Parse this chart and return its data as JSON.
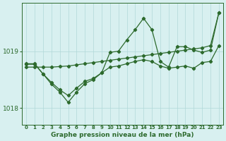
{
  "title": "Graphe pression niveau de la mer (hPa)",
  "background_color": "#d8f0f0",
  "grid_color": "#b0d8d8",
  "line_color": "#2d6a2d",
  "x_labels": [
    "0",
    "1",
    "2",
    "3",
    "4",
    "5",
    "6",
    "7",
    "8",
    "9",
    "10",
    "11",
    "12",
    "13",
    "14",
    "15",
    "16",
    "17",
    "18",
    "19",
    "20",
    "21",
    "22",
    "23"
  ],
  "ylim": [
    1017.7,
    1019.85
  ],
  "yticks": [
    1018,
    1019
  ],
  "line1_x": [
    0,
    1,
    2,
    3,
    4,
    5,
    6,
    7,
    8,
    9,
    10,
    11,
    12,
    13,
    14,
    15,
    16,
    17,
    18,
    19,
    20,
    21,
    22,
    23
  ],
  "line1_y": [
    1018.78,
    1018.78,
    1018.6,
    1018.42,
    1018.28,
    1018.1,
    1018.28,
    1018.43,
    1018.5,
    1018.62,
    1018.98,
    1019.0,
    1019.2,
    1019.38,
    1019.58,
    1019.38,
    1018.82,
    1018.72,
    1019.08,
    1019.08,
    1019.02,
    1018.98,
    1019.02,
    1019.68
  ],
  "line2_x": [
    0,
    1,
    2,
    3,
    4,
    5,
    6,
    7,
    8,
    9,
    10,
    11,
    12,
    13,
    14,
    15,
    16,
    17,
    18,
    19,
    20,
    21,
    22,
    23
  ],
  "line2_y": [
    1018.72,
    1018.72,
    1018.72,
    1018.72,
    1018.73,
    1018.74,
    1018.76,
    1018.78,
    1018.8,
    1018.82,
    1018.84,
    1018.86,
    1018.88,
    1018.9,
    1018.92,
    1018.94,
    1018.96,
    1018.98,
    1019.0,
    1019.02,
    1019.04,
    1019.06,
    1019.1,
    1019.68
  ],
  "line3_x": [
    0,
    1,
    2,
    3,
    4,
    5,
    6,
    7,
    8,
    9,
    10,
    11,
    12,
    13,
    14,
    15,
    16,
    17,
    18,
    19,
    20,
    21,
    22,
    23
  ],
  "line3_y": [
    1018.77,
    1018.77,
    1018.6,
    1018.45,
    1018.32,
    1018.22,
    1018.35,
    1018.47,
    1018.52,
    1018.62,
    1018.72,
    1018.74,
    1018.78,
    1018.82,
    1018.85,
    1018.82,
    1018.74,
    1018.7,
    1018.72,
    1018.74,
    1018.7,
    1018.8,
    1018.82,
    1019.1
  ]
}
